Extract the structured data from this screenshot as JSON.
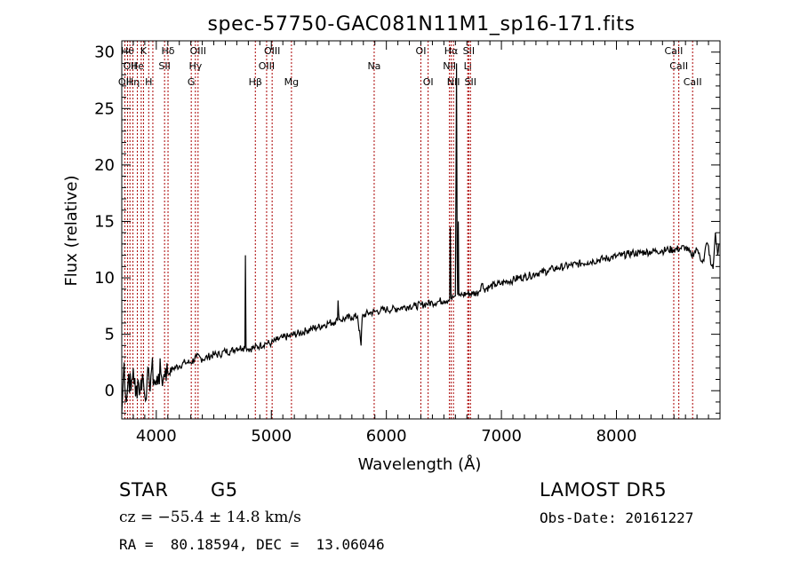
{
  "chart_data": {
    "type": "line",
    "title": "spec-57750-GAC081N11M1_sp16-171.fits",
    "xlabel": "Wavelength (Å)",
    "ylabel": "Flux (relative)",
    "xlim": [
      3700,
      8900
    ],
    "ylim": [
      -2.5,
      31
    ],
    "x_ticks": [
      4000,
      5000,
      6000,
      7000,
      8000
    ],
    "y_ticks": [
      0,
      5,
      10,
      15,
      20,
      25,
      30
    ],
    "grid": false,
    "line_color": "#000000",
    "marker_color": "#aa0000",
    "series": [
      {
        "x": [
          3700,
          3720,
          3740,
          3760,
          3780,
          3800,
          3820,
          3840,
          3860,
          3880,
          3900,
          3920,
          3940,
          3960,
          3980,
          4000,
          4020,
          4040,
          4060,
          4080,
          4100,
          4150,
          4200,
          4250,
          4300,
          4350,
          4400,
          4450,
          4500,
          4550,
          4600,
          4650,
          4700,
          4750,
          4770,
          4775,
          4780,
          4800,
          4850,
          4900,
          4950,
          5000,
          5050,
          5100,
          5150,
          5200,
          5250,
          5300,
          5350,
          5400,
          5450,
          5500,
          5550,
          5575,
          5580,
          5590,
          5600,
          5650,
          5700,
          5750,
          5780,
          5790,
          5800,
          5850,
          5900,
          5950,
          6000,
          6050,
          6100,
          6150,
          6200,
          6250,
          6300,
          6350,
          6400,
          6450,
          6500,
          6550,
          6555,
          6562,
          6570,
          6580,
          6600,
          6610,
          6615,
          6620,
          6625,
          6630,
          6640,
          6660,
          6700,
          6750,
          6800,
          6830,
          6850,
          6900,
          6950,
          7000,
          7050,
          7100,
          7150,
          7200,
          7250,
          7300,
          7350,
          7400,
          7450,
          7500,
          7550,
          7600,
          7650,
          7700,
          7750,
          7800,
          7850,
          7900,
          7950,
          8000,
          8050,
          8100,
          8150,
          8200,
          8250,
          8300,
          8350,
          8400,
          8450,
          8500,
          8550,
          8600,
          8650,
          8700,
          8720,
          8740,
          8760,
          8780,
          8800,
          8820,
          8840,
          8860,
          8880,
          8890
        ],
        "y": [
          -2,
          2.5,
          -1,
          1.5,
          0,
          2,
          -0.5,
          1,
          0,
          1.5,
          -0.5,
          1,
          0.5,
          2,
          1,
          0.5,
          1.5,
          1.5,
          1,
          2,
          1.5,
          2,
          2.2,
          2.5,
          2.5,
          3,
          2.8,
          3,
          3.2,
          3.2,
          3.5,
          3.5,
          3.8,
          3.8,
          3.8,
          12,
          3.9,
          3.7,
          3.8,
          4,
          4.2,
          4.2,
          4.5,
          4.7,
          4.8,
          5,
          5.1,
          5.3,
          5.5,
          5.6,
          5.8,
          6,
          6.1,
          6.2,
          8,
          6.3,
          6.3,
          6.4,
          6.5,
          6.6,
          4,
          6.5,
          6.7,
          6.9,
          7,
          7.1,
          7.2,
          7.2,
          7.3,
          7.4,
          7.5,
          7.5,
          7.6,
          7.7,
          7.8,
          7.9,
          8,
          8.1,
          14.5,
          8.2,
          8.1,
          8.3,
          8.4,
          29,
          12,
          8.5,
          15,
          8.4,
          8.5,
          8.5,
          8.6,
          8.6,
          8.7,
          9.5,
          9,
          9.2,
          9.4,
          9.5,
          9.7,
          9.8,
          10,
          10.1,
          10.2,
          10.4,
          10.5,
          10.6,
          10.8,
          10.9,
          11,
          11.1,
          11.2,
          11.3,
          11.4,
          11.5,
          11.6,
          11.7,
          11.8,
          11.9,
          12,
          12.1,
          12.2,
          12.2,
          12.3,
          12.3,
          12.4,
          12.4,
          12.5,
          12.5,
          12.6,
          12.7,
          12,
          12.5,
          12.2,
          11.5,
          11.5,
          13,
          12.8,
          11.2,
          10.8,
          14,
          12,
          13
        ]
      }
    ],
    "line_markers": [
      {
        "x": 3727,
        "label": "OII",
        "row": 2
      },
      {
        "x": 3750,
        "label": "Hθ",
        "row": 0
      },
      {
        "x": 3771,
        "label": "OII",
        "row": 1
      },
      {
        "x": 3797,
        "label": "Hη",
        "row": 2
      },
      {
        "x": 3835,
        "label": "He",
        "row": 1
      },
      {
        "x": 3869,
        "label": "",
        "row": 1
      },
      {
        "x": 3889,
        "label": "K",
        "row": 0
      },
      {
        "x": 3934,
        "label": "H",
        "row": 2
      },
      {
        "x": 3970,
        "label": "",
        "row": 2
      },
      {
        "x": 4072,
        "label": "SII",
        "row": 1
      },
      {
        "x": 4102,
        "label": "Hδ",
        "row": 0
      },
      {
        "x": 4304,
        "label": "G",
        "row": 2
      },
      {
        "x": 4340,
        "label": "Hγ",
        "row": 1
      },
      {
        "x": 4363,
        "label": "OIII",
        "row": 0
      },
      {
        "x": 4861,
        "label": "Hβ",
        "row": 2
      },
      {
        "x": 4959,
        "label": "OIII",
        "row": 1
      },
      {
        "x": 5007,
        "label": "OIII",
        "row": 0
      },
      {
        "x": 5175,
        "label": "Mg",
        "row": 2
      },
      {
        "x": 5894,
        "label": "Na",
        "row": 1
      },
      {
        "x": 6300,
        "label": "OI",
        "row": 0
      },
      {
        "x": 6363,
        "label": "OI",
        "row": 2
      },
      {
        "x": 6548,
        "label": "NII",
        "row": 1
      },
      {
        "x": 6563,
        "label": "Hα",
        "row": 0
      },
      {
        "x": 6583,
        "label": "NII",
        "row": 2
      },
      {
        "x": 6707,
        "label": "Li",
        "row": 1
      },
      {
        "x": 6716,
        "label": "SII",
        "row": 0
      },
      {
        "x": 6731,
        "label": "SII",
        "row": 2
      },
      {
        "x": 8498,
        "label": "CaII",
        "row": 0
      },
      {
        "x": 8542,
        "label": "CaII",
        "row": 1
      },
      {
        "x": 8662,
        "label": "CaII",
        "row": 2
      }
    ]
  },
  "info": {
    "class": "STAR",
    "subclass": "G5",
    "survey": "LAMOST DR5",
    "cz": "cz = −55.4 ± 14.8 km/s",
    "obs_date": "Obs-Date: 20161227",
    "radec": "RA =  80.18594, DEC =  13.06046"
  }
}
